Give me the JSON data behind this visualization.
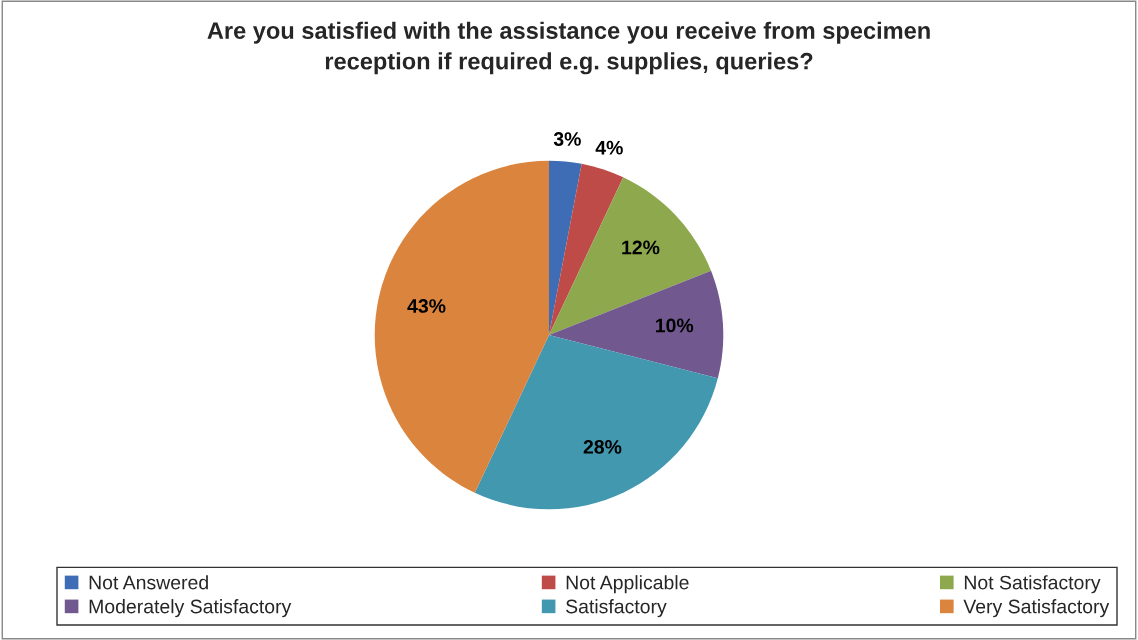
{
  "chart_data": {
    "type": "pie",
    "title": "Are you satisfied with the assistance you receive from specimen\nreception if required e.g. supplies, queries?",
    "categories": [
      "Not Answered",
      "Not Applicable",
      "Not Satisfactory",
      "Moderately Satisfactory",
      "Satisfactory",
      "Very Satisfactory"
    ],
    "values": [
      3,
      4,
      12,
      10,
      28,
      43
    ],
    "colors": [
      "#3e6db5",
      "#be4b48",
      "#8ea84d",
      "#71588f",
      "#4198af",
      "#db843d"
    ],
    "value_labels": [
      "3%",
      "4%",
      "12%",
      "10%",
      "28%",
      "43%"
    ],
    "legend": "bottom"
  }
}
